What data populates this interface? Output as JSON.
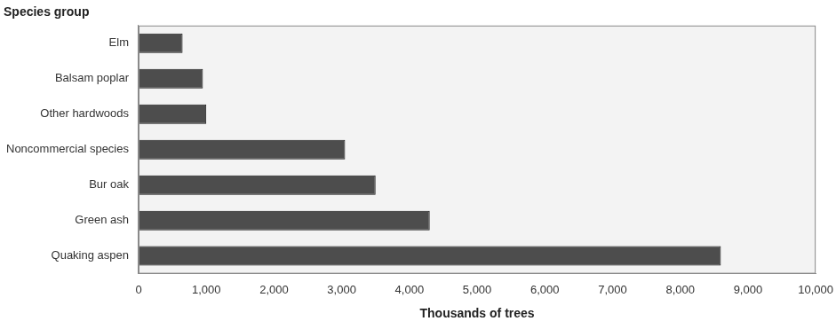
{
  "chart_data": {
    "type": "bar",
    "orientation": "horizontal",
    "ylabel": "Species group",
    "xlabel": "Thousands of trees",
    "categories": [
      "Elm",
      "Balsam poplar",
      "Other hardwoods",
      "Noncommercial species",
      "Bur oak",
      "Green ash",
      "Quaking aspen"
    ],
    "values": [
      650,
      950,
      1000,
      3050,
      3500,
      4300,
      8600
    ],
    "color": "#4d4d4d",
    "xlim": [
      0,
      10000
    ],
    "xticks": [
      0,
      {
        "value": 1000,
        "label": "1,000"
      },
      {
        "value": 2000,
        "label": "2,000"
      },
      {
        "value": 3000,
        "label": "3,000"
      },
      {
        "value": 4000,
        "label": "4,000"
      },
      {
        "value": 5000,
        "label": "5,000"
      },
      {
        "value": 6000,
        "label": "6,000"
      },
      {
        "value": 7000,
        "label": "7,000"
      },
      {
        "value": 8000,
        "label": "8,000"
      },
      {
        "value": 9000,
        "label": "9,000"
      },
      {
        "value": 10000,
        "label": "10,000"
      }
    ],
    "grid": false
  }
}
